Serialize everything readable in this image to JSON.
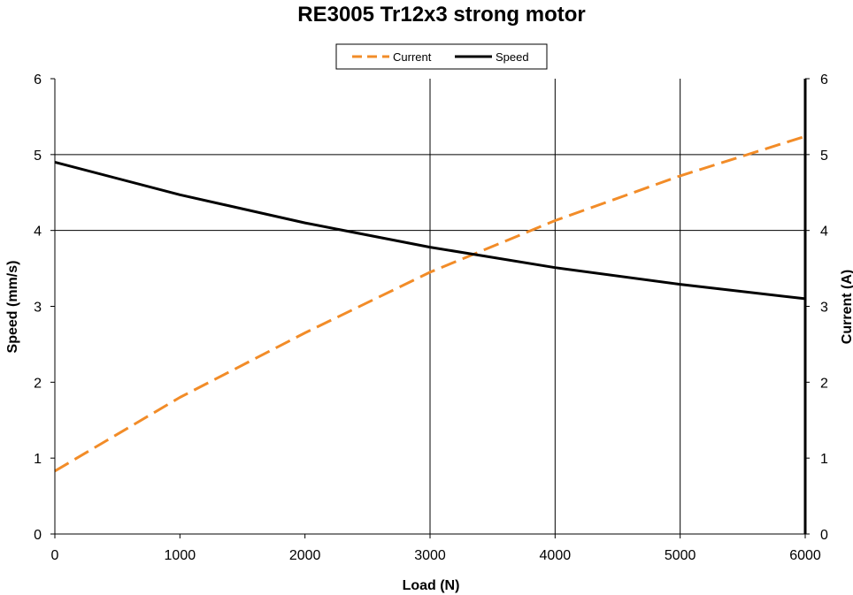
{
  "chart_data": {
    "type": "line",
    "title": "RE3005 Tr12x3 strong motor",
    "xlabel": "Load (N)",
    "ylabel": "Speed (mm/s)",
    "y2label": "Current (A)",
    "xlim": [
      0,
      6000
    ],
    "ylim": [
      0,
      6
    ],
    "y2lim": [
      0,
      6
    ],
    "x_ticks": [
      0,
      1000,
      2000,
      3000,
      4000,
      5000,
      6000
    ],
    "x_tick_labels": [
      "0",
      "1000",
      "2000",
      "3000",
      "4000",
      "5000",
      "6000"
    ],
    "y_ticks": [
      0,
      1,
      2,
      3,
      4,
      5,
      6
    ],
    "y_tick_labels": [
      "0",
      "1",
      "2",
      "3",
      "4",
      "5",
      "6"
    ],
    "y2_tick_labels": [
      "0",
      "1",
      "2",
      "3",
      "4",
      "5",
      "6"
    ],
    "grid": {
      "vertical_at": [
        3000,
        4000,
        5000
      ],
      "horizontal_at": [
        4,
        5
      ]
    },
    "legend": {
      "position": "top-center",
      "entries": [
        "Current",
        "Speed"
      ]
    },
    "series": [
      {
        "name": "Current",
        "axis": "right",
        "style": "dashed",
        "color": "#F28C28",
        "x": [
          0,
          1000,
          2000,
          3000,
          4000,
          5000,
          6000
        ],
        "y": [
          0.83,
          1.8,
          2.65,
          3.45,
          4.13,
          4.72,
          5.24
        ]
      },
      {
        "name": "Speed",
        "axis": "left",
        "style": "solid",
        "color": "#000000",
        "x": [
          0,
          1000,
          2000,
          3000,
          4000,
          5000,
          6000
        ],
        "y": [
          4.9,
          4.47,
          4.1,
          3.78,
          3.51,
          3.29,
          3.1
        ]
      }
    ]
  }
}
